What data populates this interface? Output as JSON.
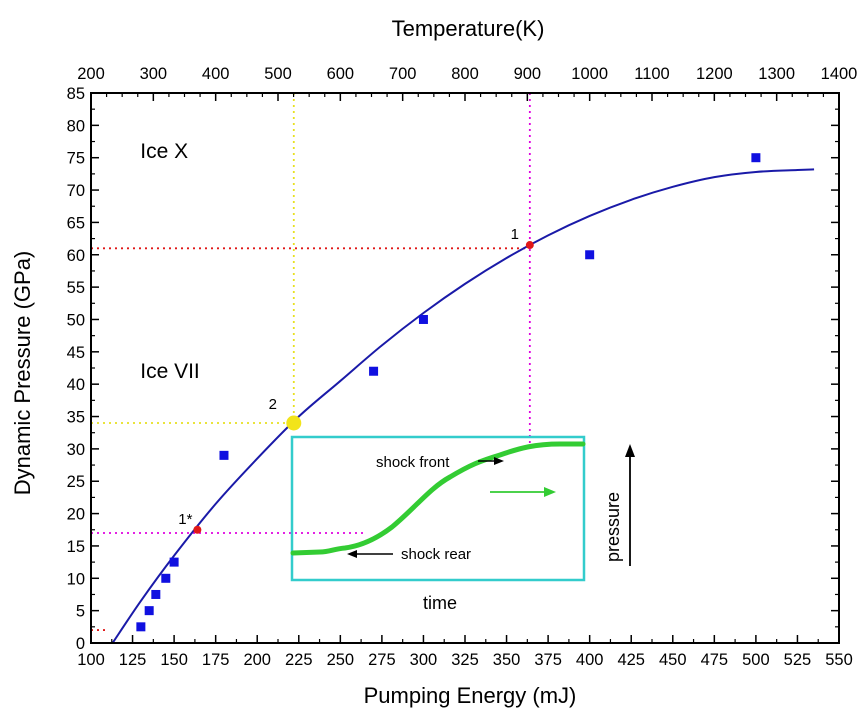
{
  "chart_data": {
    "type": "scatter",
    "xlabel": "Pumping Energy (mJ)",
    "ylabel": "Dynamic Pressure (GPa)",
    "x2label": "Temperature(K)",
    "xlim": [
      100,
      550
    ],
    "ylim": [
      0,
      85
    ],
    "x2lim": [
      200,
      1400
    ],
    "x_ticks": [
      100,
      125,
      150,
      175,
      200,
      225,
      250,
      275,
      300,
      325,
      350,
      375,
      400,
      425,
      450,
      475,
      500,
      525,
      550
    ],
    "y_ticks": [
      0,
      5,
      10,
      15,
      20,
      25,
      30,
      35,
      40,
      45,
      50,
      55,
      60,
      65,
      70,
      75,
      80,
      85
    ],
    "x2_ticks": [
      200,
      300,
      400,
      500,
      600,
      700,
      800,
      900,
      1000,
      1100,
      1200,
      1300,
      1400
    ],
    "series": [
      {
        "kind": "markers",
        "color": "#1010e0",
        "marker": "square",
        "points": [
          {
            "x": 130,
            "y": 2.5
          },
          {
            "x": 135,
            "y": 5
          },
          {
            "x": 139,
            "y": 7.5
          },
          {
            "x": 145,
            "y": 10
          },
          {
            "x": 150,
            "y": 12.5
          },
          {
            "x": 180,
            "y": 29
          },
          {
            "x": 270,
            "y": 42
          },
          {
            "x": 300,
            "y": 50
          },
          {
            "x": 400,
            "y": 60
          },
          {
            "x": 500,
            "y": 75
          }
        ]
      },
      {
        "kind": "curve",
        "color": "#1a1aa8",
        "points": [
          {
            "x": 113,
            "y": 0
          },
          {
            "x": 130,
            "y": 6.5
          },
          {
            "x": 150,
            "y": 13.5
          },
          {
            "x": 175,
            "y": 21.5
          },
          {
            "x": 200,
            "y": 28.5
          },
          {
            "x": 225,
            "y": 35
          },
          {
            "x": 250,
            "y": 40.5
          },
          {
            "x": 275,
            "y": 46
          },
          {
            "x": 300,
            "y": 51
          },
          {
            "x": 325,
            "y": 55.5
          },
          {
            "x": 350,
            "y": 59.5
          },
          {
            "x": 375,
            "y": 63
          },
          {
            "x": 400,
            "y": 66
          },
          {
            "x": 425,
            "y": 68.5
          },
          {
            "x": 450,
            "y": 70.5
          },
          {
            "x": 475,
            "y": 72
          },
          {
            "x": 500,
            "y": 72.8
          },
          {
            "x": 525,
            "y": 73.1
          },
          {
            "x": 535,
            "y": 73.2
          }
        ]
      }
    ],
    "highlight_points": [
      {
        "label": "1",
        "x": 364,
        "y": 61.5,
        "color": "#e01818"
      },
      {
        "label": "1*",
        "x": 164,
        "y": 17.5,
        "color": "#e01818"
      },
      {
        "label": "2",
        "x": 222,
        "y": 34,
        "color": "#f2e41a"
      }
    ],
    "guide_lines": [
      {
        "orientation": "horizontal",
        "y": 61,
        "x_from": 100,
        "x_to": 362,
        "color": "#e01818"
      },
      {
        "orientation": "vertical",
        "x": 364,
        "y_from": 85,
        "y_to": 30,
        "color": "#e000e0"
      },
      {
        "orientation": "vertical",
        "x": 222,
        "y_from": 85,
        "y_to": 34,
        "color": "#e8e020"
      },
      {
        "orientation": "horizontal",
        "y": 34,
        "x_from": 100,
        "x_to": 222,
        "color": "#e8e020"
      },
      {
        "orientation": "horizontal",
        "y": 17,
        "x_from": 100,
        "x_to": 265,
        "color": "#e000e0"
      },
      {
        "orientation": "horizontal",
        "y": 2,
        "x_from": 100,
        "x_to": 110,
        "color": "#e01818"
      }
    ],
    "annotations": [
      {
        "text": "Ice X",
        "x": 120,
        "y": 76
      },
      {
        "text": "Ice VII",
        "x": 120,
        "y": 42
      }
    ],
    "inset": {
      "border_color": "#33cccc",
      "curve_color": "#33cc33",
      "x_label": "time",
      "y_label": "pressure",
      "front_label": "shock front",
      "rear_label": "shock rear"
    },
    "grid": false
  }
}
